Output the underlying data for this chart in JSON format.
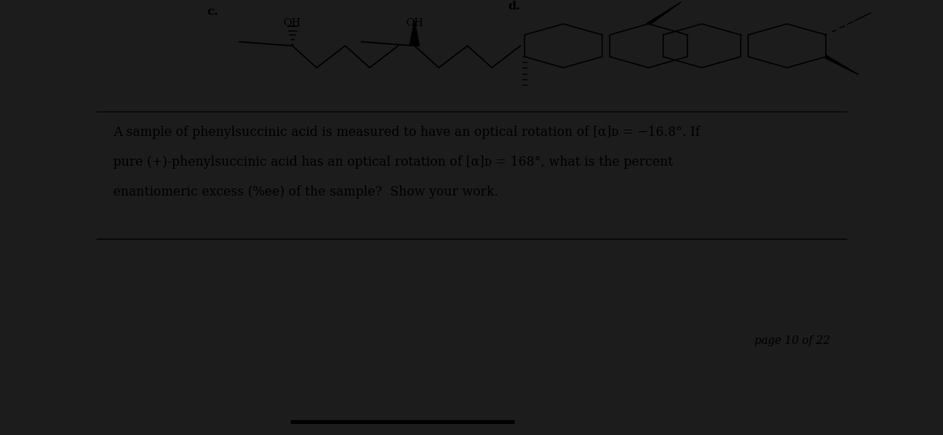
{
  "dark_bg": "#1c1c1c",
  "page_bg": "#ffffff",
  "label_c": "c.",
  "label_d": "d.",
  "oh1": "OH",
  "oh2": "OH",
  "question_text_line1": "A sample of phenylsuccinic acid is measured to have an optical rotation of [α]ᴅ = −16.8°. If",
  "question_text_line2": "pure (+)-phenylsuccinic acid has an optical rotation of [α]ᴅ = 168°, what is the percent",
  "question_text_line3": "enantiomeric excess (%ee) of the sample?  Show your work.",
  "page_label": "page 10 of 22",
  "font_size_body": 11.5,
  "font_size_label": 11,
  "font_size_page": 10
}
